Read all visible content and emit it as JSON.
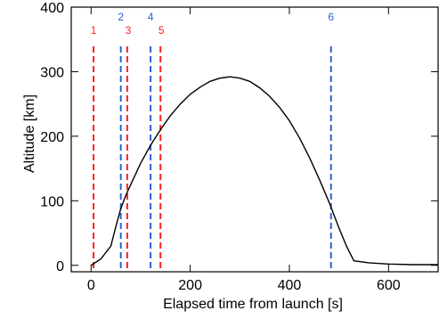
{
  "chart_data": {
    "type": "line",
    "xlabel": "Elapsed time from launch [s]",
    "ylabel": "Altitude [km]",
    "xlim": [
      -40,
      700
    ],
    "ylim": [
      -10,
      400
    ],
    "xticks": [
      0,
      200,
      400,
      600
    ],
    "yticks": [
      0,
      100,
      200,
      300,
      400
    ],
    "grid": false,
    "series": [
      {
        "color": "#000000",
        "x": [
          0,
          20,
          40,
          50,
          60,
          70,
          80,
          100,
          120,
          140,
          160,
          180,
          200,
          220,
          240,
          260,
          280,
          300,
          320,
          340,
          360,
          380,
          400,
          420,
          440,
          460,
          480,
          500,
          515,
          530,
          560,
          600,
          650,
          700
        ],
        "y": [
          0,
          10,
          30,
          60,
          88,
          108,
          125,
          158,
          186,
          210,
          232,
          250,
          265,
          276,
          285,
          290,
          292,
          290,
          285,
          275,
          262,
          245,
          224,
          198,
          168,
          134,
          98,
          58,
          30,
          7,
          4,
          2,
          1,
          1
        ]
      }
    ],
    "event_markers": [
      {
        "label": "1",
        "x": 5,
        "color": "#ff2020"
      },
      {
        "label": "2",
        "x": 60,
        "color": "#2a62d6"
      },
      {
        "label": "3",
        "x": 73,
        "color": "#ff2020"
      },
      {
        "label": "4",
        "x": 120,
        "color": "#2a62d6"
      },
      {
        "label": "5",
        "x": 140,
        "color": "#ff2020"
      },
      {
        "label": "6",
        "x": 484,
        "color": "#2a62d6"
      }
    ]
  }
}
